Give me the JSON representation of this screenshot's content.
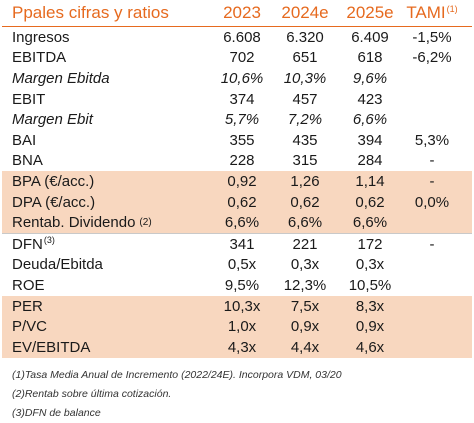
{
  "header": {
    "title": "Ppales cifras y ratios",
    "year_2023": "2023",
    "year_2024e": "2024e",
    "year_2025e": "2025e",
    "tami": "TAMI",
    "tami_sup": "(1)"
  },
  "rows": [
    {
      "label": "Ingresos",
      "v2023": "6.608",
      "v2024e": "6.320",
      "v2025e": "6.409",
      "tami": "-1,5%"
    },
    {
      "label": "EBITDA",
      "v2023": "702",
      "v2024e": "651",
      "v2025e": "618",
      "tami": "-6,2%"
    },
    {
      "label": "Margen Ebitda",
      "v2023": "10,6%",
      "v2024e": "10,3%",
      "v2025e": "9,6%",
      "tami": ""
    },
    {
      "label": "EBIT",
      "v2023": "374",
      "v2024e": "457",
      "v2025e": "423",
      "tami": ""
    },
    {
      "label": "Margen Ebit",
      "v2023": "5,7%",
      "v2024e": "7,2%",
      "v2025e": "6,6%",
      "tami": ""
    },
    {
      "label": "BAI",
      "v2023": "355",
      "v2024e": "435",
      "v2025e": "394",
      "tami": "5,3%"
    },
    {
      "label": "BNA",
      "v2023": "228",
      "v2024e": "315",
      "v2025e": "284",
      "tami": "-"
    },
    {
      "label": "BPA (€/acc.)",
      "v2023": "0,92",
      "v2024e": "1,26",
      "v2025e": "1,14",
      "tami": "-"
    },
    {
      "label": "DPA (€/acc.)",
      "v2023": "0,62",
      "v2024e": "0,62",
      "v2025e": "0,62",
      "tami": "0,0%"
    },
    {
      "label": "Rentab. Dividendo",
      "label_note": "(2)",
      "v2023": "6,6%",
      "v2024e": "6,6%",
      "v2025e": "6,6%",
      "tami": ""
    },
    {
      "label": "DFN",
      "label_sup": "(3)",
      "v2023": "341",
      "v2024e": "221",
      "v2025e": "172",
      "tami": "-"
    },
    {
      "label": "Deuda/Ebitda",
      "v2023": "0,5x",
      "v2024e": "0,3x",
      "v2025e": "0,3x",
      "tami": ""
    },
    {
      "label": "ROE",
      "v2023": "9,5%",
      "v2024e": "12,3%",
      "v2025e": "10,5%",
      "tami": ""
    },
    {
      "label": "PER",
      "v2023": "10,3x",
      "v2024e": "7,5x",
      "v2025e": "8,3x",
      "tami": ""
    },
    {
      "label": "P/VC",
      "v2023": "1,0x",
      "v2024e": "0,9x",
      "v2025e": "0,9x",
      "tami": ""
    },
    {
      "label": "EV/EBITDA",
      "v2023": "4,3x",
      "v2024e": "4,4x",
      "v2025e": "4,6x",
      "tami": ""
    }
  ],
  "notes": [
    "(1)Tasa Media Anual de Incremento (2022/24E). Incorpora VDM, 03/20",
    "(2)Rentab sobre última cotización.",
    "(3)DFN de balance"
  ],
  "colors": {
    "accent": "#e66a1f",
    "shade": "#f8d7bf"
  }
}
